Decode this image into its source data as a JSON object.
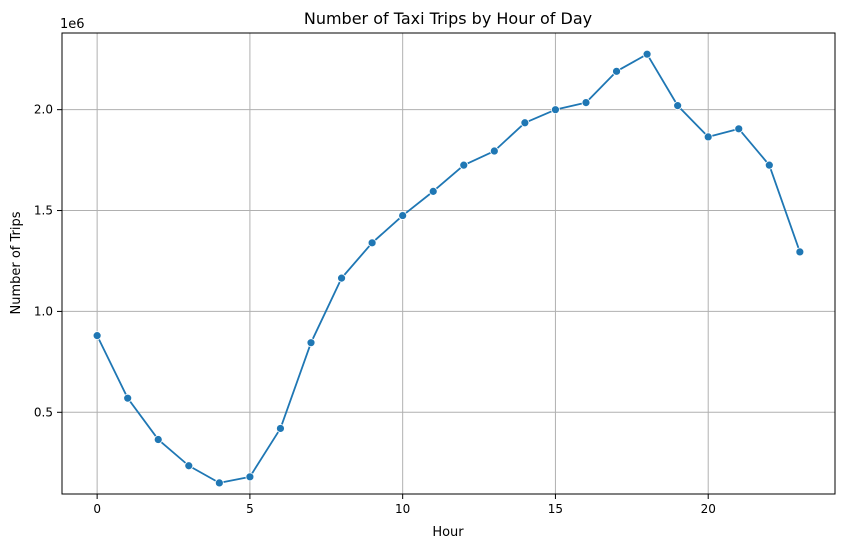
{
  "chart_data": {
    "type": "line",
    "title": "Number of Taxi Trips by Hour of Day",
    "xlabel": "Hour",
    "ylabel": "Number of Trips",
    "y_offset_text": "1e6",
    "x": [
      0,
      1,
      2,
      3,
      4,
      5,
      6,
      7,
      8,
      9,
      10,
      11,
      12,
      13,
      14,
      15,
      16,
      17,
      18,
      19,
      20,
      21,
      22,
      23
    ],
    "series": [
      {
        "values": [
          880000,
          570000,
          365000,
          235000,
          150000,
          180000,
          420000,
          845000,
          1165000,
          1340000,
          1475000,
          1595000,
          1725000,
          1795000,
          1935000,
          2000000,
          2035000,
          2190000,
          2275000,
          2020000,
          1865000,
          1905000,
          1725000,
          1295000
        ],
        "color": "#1f77b4",
        "marker": "circle"
      }
    ],
    "xlim": [
      -1.15,
      24.15
    ],
    "ylim": [
      95000,
      2380000
    ],
    "x_ticks": [
      0,
      5,
      10,
      15,
      20
    ],
    "x_tick_labels": [
      "0",
      "5",
      "10",
      "15",
      "20"
    ],
    "y_ticks": [
      500000,
      1000000,
      1500000,
      2000000
    ],
    "y_tick_labels": [
      "0.5",
      "1.0",
      "1.5",
      "2.0"
    ],
    "grid": true
  }
}
